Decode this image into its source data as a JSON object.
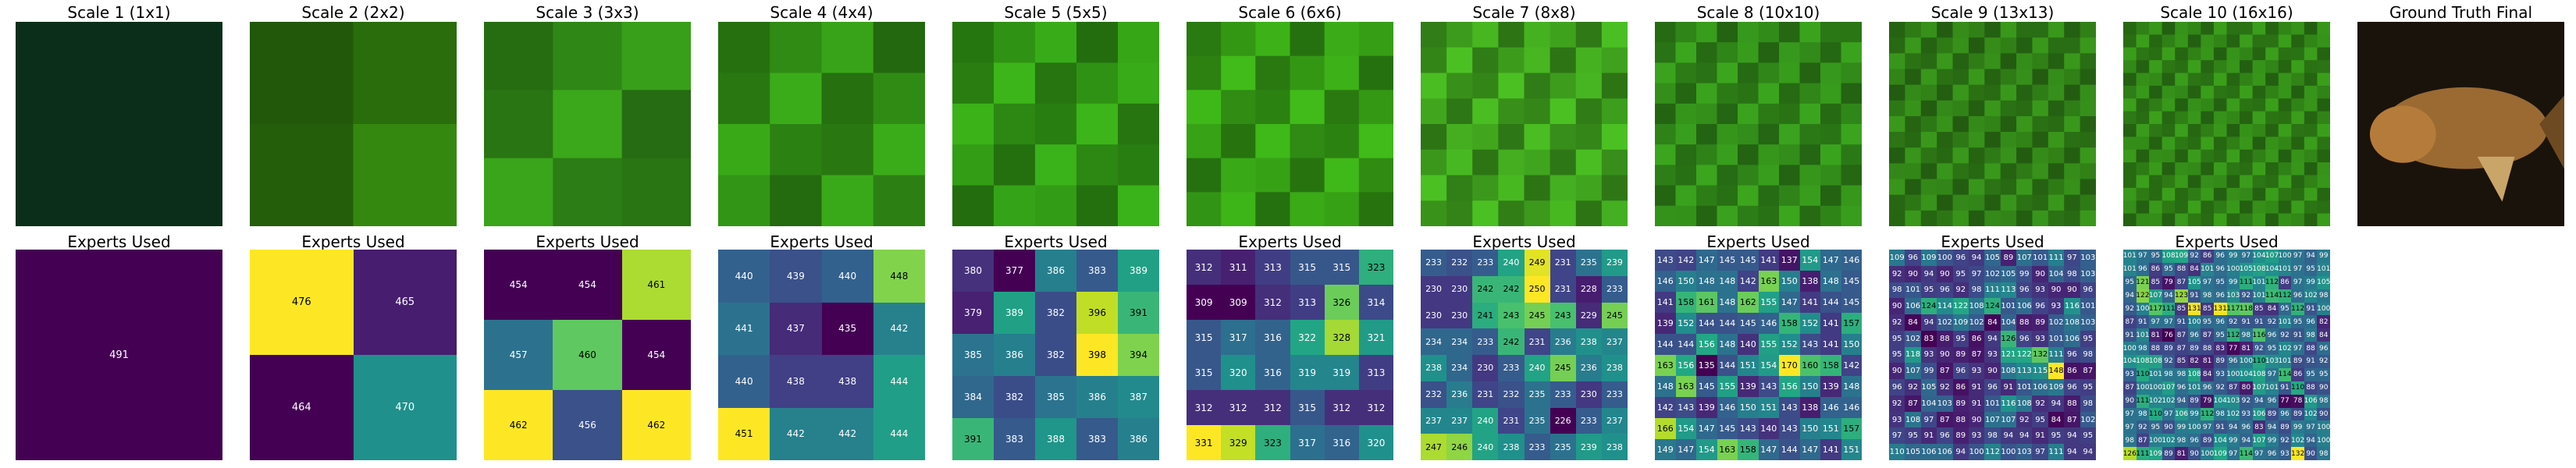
{
  "chart_data": [
    {
      "type": "image",
      "title": "Scale 1 (1x1)",
      "image": "generated-green-texture",
      "grid": 1,
      "tone": "#0b2e1a"
    },
    {
      "type": "image",
      "title": "Scale 2 (2x2)",
      "image": "generated-green-texture",
      "grid": 2,
      "tone": "#2a6d0c"
    },
    {
      "type": "image",
      "title": "Scale 3 (3x3)",
      "image": "generated-green-texture",
      "grid": 3,
      "tone": "#2f8616"
    },
    {
      "type": "image",
      "title": "Scale 4 (4x4)",
      "image": "generated-green-texture",
      "grid": 4,
      "tone": "#2f8a14"
    },
    {
      "type": "image",
      "title": "Scale 5 (5x5)",
      "image": "generated-green-texture",
      "grid": 5,
      "tone": "#2f9114"
    },
    {
      "type": "image",
      "title": "Scale 6 (6x6)",
      "image": "generated-green-texture",
      "grid": 6,
      "tone": "#339614"
    },
    {
      "type": "image",
      "title": "Scale 7 (8x8)",
      "image": "generated-green-texture",
      "grid": 8,
      "tone": "#3c9a1c"
    },
    {
      "type": "image",
      "title": "Scale 8 (10x10)",
      "image": "generated-green-texture",
      "grid": 10,
      "tone": "#2f8418"
    },
    {
      "type": "image",
      "title": "Scale 9 (13x13)",
      "image": "generated-green-texture",
      "grid": 13,
      "tone": "#2e7a16"
    },
    {
      "type": "image",
      "title": "Scale 10 (16x16)",
      "image": "generated-green-texture",
      "grid": 16,
      "tone": "#2f7f16"
    },
    {
      "type": "image",
      "title": "Ground Truth Final",
      "image": "fish-photo",
      "tone": "#b57b3a"
    },
    {
      "type": "heatmap",
      "title": "Experts Used",
      "colormap": "viridis",
      "rows": 1,
      "cols": 1,
      "values": [
        [
          491
        ]
      ]
    },
    {
      "type": "heatmap",
      "title": "Experts Used",
      "colormap": "viridis",
      "rows": 2,
      "cols": 2,
      "values": [
        [
          476,
          465
        ],
        [
          464,
          470
        ]
      ]
    },
    {
      "type": "heatmap",
      "title": "Experts Used",
      "colormap": "viridis",
      "rows": 3,
      "cols": 3,
      "values": [
        [
          454,
          454,
          461
        ],
        [
          457,
          460,
          454
        ],
        [
          462,
          456,
          462
        ]
      ]
    },
    {
      "type": "heatmap",
      "title": "Experts Used",
      "colormap": "viridis",
      "rows": 4,
      "cols": 4,
      "values": [
        [
          440,
          439,
          440,
          448
        ],
        [
          441,
          437,
          435,
          442
        ],
        [
          440,
          438,
          438,
          444
        ],
        [
          451,
          442,
          442,
          444
        ]
      ]
    },
    {
      "type": "heatmap",
      "title": "Experts Used",
      "colormap": "viridis",
      "rows": 5,
      "cols": 5,
      "values": [
        [
          380,
          377,
          386,
          383,
          389
        ],
        [
          379,
          389,
          382,
          396,
          391
        ],
        [
          385,
          386,
          382,
          398,
          394
        ],
        [
          384,
          382,
          385,
          386,
          387
        ],
        [
          391,
          383,
          388,
          383,
          386
        ]
      ]
    },
    {
      "type": "heatmap",
      "title": "Experts Used",
      "colormap": "viridis",
      "rows": 6,
      "cols": 6,
      "values": [
        [
          312,
          311,
          313,
          315,
          315,
          323
        ],
        [
          309,
          309,
          312,
          313,
          326,
          314
        ],
        [
          315,
          317,
          316,
          322,
          328,
          321
        ],
        [
          315,
          320,
          316,
          319,
          319,
          313
        ],
        [
          312,
          312,
          312,
          315,
          312,
          312
        ],
        [
          331,
          329,
          323,
          317,
          316,
          320
        ]
      ]
    },
    {
      "type": "heatmap",
      "title": "Experts Used",
      "colormap": "viridis",
      "rows": 8,
      "cols": 8,
      "values": [
        [
          233,
          232,
          233,
          240,
          249,
          231,
          235,
          239
        ],
        [
          230,
          230,
          242,
          242,
          250,
          231,
          228,
          233
        ],
        [
          230,
          230,
          241,
          243,
          245,
          243,
          229,
          245
        ],
        [
          234,
          234,
          233,
          242,
          231,
          236,
          238,
          237
        ],
        [
          238,
          234,
          230,
          233,
          240,
          245,
          236,
          238
        ],
        [
          232,
          236,
          231,
          232,
          235,
          233,
          230,
          233
        ],
        [
          237,
          237,
          240,
          231,
          235,
          226,
          233,
          237
        ],
        [
          247,
          246,
          240,
          238,
          233,
          235,
          239,
          238
        ]
      ]
    },
    {
      "type": "heatmap",
      "title": "Experts Used",
      "colormap": "viridis",
      "rows": 10,
      "cols": 10,
      "values": [
        [
          143,
          142,
          147,
          145,
          145,
          141,
          137,
          154,
          147,
          146
        ],
        [
          146,
          150,
          148,
          148,
          142,
          163,
          150,
          138,
          148,
          145
        ],
        [
          141,
          158,
          161,
          148,
          162,
          155,
          147,
          141,
          144,
          145
        ],
        [
          139,
          152,
          144,
          144,
          145,
          146,
          158,
          152,
          141,
          157
        ],
        [
          144,
          144,
          156,
          148,
          140,
          155,
          152,
          143,
          141,
          150
        ],
        [
          163,
          156,
          135,
          144,
          151,
          154,
          170,
          160,
          158,
          142
        ],
        [
          148,
          163,
          145,
          155,
          139,
          143,
          156,
          150,
          139,
          148
        ],
        [
          142,
          143,
          139,
          146,
          150,
          151,
          143,
          138,
          146,
          146
        ],
        [
          166,
          154,
          147,
          145,
          143,
          140,
          143,
          150,
          151,
          157
        ],
        [
          149,
          147,
          154,
          163,
          158,
          147,
          144,
          147,
          141,
          151
        ]
      ]
    },
    {
      "type": "heatmap",
      "title": "Experts Used",
      "colormap": "viridis",
      "rows": 13,
      "cols": 13,
      "values": [
        [
          109,
          96,
          109,
          100,
          96,
          94,
          105,
          89,
          107,
          101,
          111,
          97,
          103
        ],
        [
          92,
          90,
          94,
          90,
          95,
          97,
          102,
          105,
          99,
          90,
          104,
          98,
          103
        ],
        [
          98,
          101,
          95,
          96,
          92,
          98,
          111,
          113,
          96,
          93,
          90,
          90,
          96
        ],
        [
          90,
          106,
          124,
          114,
          122,
          108,
          124,
          101,
          106,
          96,
          93,
          116,
          101
        ],
        [
          92,
          84,
          94,
          102,
          109,
          102,
          84,
          104,
          88,
          89,
          102,
          108,
          103
        ],
        [
          95,
          102,
          83,
          88,
          95,
          86,
          94,
          126,
          96,
          93,
          101,
          106,
          95
        ],
        [
          95,
          118,
          93,
          90,
          89,
          87,
          93,
          121,
          122,
          132,
          111,
          96,
          98
        ],
        [
          90,
          107,
          99,
          87,
          96,
          93,
          90,
          108,
          113,
          115,
          148,
          86,
          87
        ],
        [
          96,
          92,
          105,
          92,
          86,
          91,
          96,
          91,
          101,
          106,
          109,
          96,
          95
        ],
        [
          92,
          87,
          104,
          103,
          89,
          91,
          101,
          116,
          108,
          92,
          94,
          88,
          98
        ],
        [
          93,
          108,
          97,
          87,
          88,
          90,
          107,
          107,
          92,
          95,
          84,
          87,
          102
        ],
        [
          97,
          95,
          91,
          96,
          89,
          93,
          98,
          94,
          94,
          91,
          95,
          94,
          95
        ],
        [
          110,
          105,
          106,
          106,
          94,
          100,
          112,
          100,
          103,
          97,
          111,
          94,
          94
        ]
      ]
    },
    {
      "type": "heatmap",
      "title": "Experts Used",
      "colormap": "viridis",
      "rows": 16,
      "cols": 16,
      "values": [
        [
          101,
          97,
          95,
          108,
          109,
          92,
          86,
          96,
          99,
          97,
          104,
          107,
          100,
          97,
          94,
          99
        ],
        [
          101,
          96,
          86,
          95,
          88,
          84,
          101,
          96,
          100,
          105,
          108,
          104,
          101,
          97,
          95,
          101
        ],
        [
          95,
          121,
          85,
          79,
          87,
          105,
          97,
          95,
          99,
          111,
          101,
          112,
          86,
          97,
          99,
          105
        ],
        [
          94,
          122,
          107,
          94,
          123,
          91,
          98,
          96,
          103,
          92,
          101,
          114,
          112,
          96,
          102,
          98
        ],
        [
          92,
          100,
          117,
          111,
          85,
          131,
          85,
          131,
          117,
          118,
          85,
          84,
          95,
          112,
          91,
          100
        ],
        [
          87,
          91,
          97,
          97,
          91,
          100,
          95,
          96,
          92,
          91,
          91,
          92,
          101,
          95,
          96,
          82
        ],
        [
          91,
          101,
          81,
          76,
          87,
          96,
          87,
          95,
          112,
          98,
          116,
          96,
          92,
          91,
          98,
          84
        ],
        [
          100,
          98,
          88,
          89,
          87,
          89,
          88,
          83,
          77,
          81,
          92,
          95,
          102,
          97,
          88,
          96
        ],
        [
          104,
          108,
          108,
          92,
          85,
          82,
          81,
          89,
          96,
          100,
          110,
          103,
          101,
          89,
          91,
          92
        ],
        [
          93,
          110,
          101,
          98,
          98,
          108,
          84,
          93,
          100,
          104,
          108,
          97,
          114,
          86,
          95,
          95
        ],
        [
          87,
          100,
          100,
          107,
          96,
          101,
          96,
          92,
          87,
          80,
          107,
          101,
          91,
          110,
          88,
          90
        ],
        [
          90,
          111,
          102,
          102,
          94,
          89,
          79,
          104,
          103,
          92,
          94,
          96,
          77,
          78,
          106,
          98
        ],
        [
          97,
          98,
          110,
          97,
          106,
          99,
          112,
          98,
          102,
          93,
          106,
          89,
          96,
          89,
          102,
          90
        ],
        [
          97,
          92,
          95,
          90,
          99,
          100,
          97,
          91,
          94,
          96,
          83,
          94,
          89,
          99,
          97,
          100
        ],
        [
          98,
          87,
          100,
          102,
          98,
          96,
          89,
          104,
          99,
          94,
          107,
          99,
          92,
          102,
          94,
          100
        ],
        [
          126,
          111,
          109,
          89,
          81,
          90,
          100,
          109,
          97,
          114,
          97,
          96,
          93,
          132,
          90,
          98
        ]
      ]
    }
  ]
}
